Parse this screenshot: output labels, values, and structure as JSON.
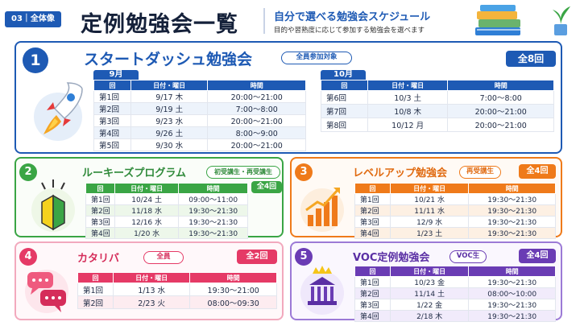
{
  "header": {
    "section_badge": "03｜全体像",
    "title": "定例勉強会一覧",
    "subtitle": "自分で選べる勉強会スケジュール",
    "description": "目的や習熟度に応じて参加する勉強会を選べます"
  },
  "columns": [
    "回",
    "日付・曜日",
    "時間"
  ],
  "colors": {
    "blue": "#1e5ab4",
    "green": "#3aa545",
    "orange": "#ef7a1a",
    "pink": "#e53a66",
    "purple": "#6a3cb4"
  },
  "cards": {
    "dash": {
      "number": "1",
      "title": "スタートダッシュ勉強会",
      "tag": "全員参加対象",
      "total": "全8回",
      "icon": "rocket-icon",
      "months": [
        {
          "label": "9月",
          "rows": [
            [
              "第1回",
              "9/17 木",
              "20:00〜21:00"
            ],
            [
              "第2回",
              "9/19 土",
              "7:00〜8:00"
            ],
            [
              "第3回",
              "9/23 水",
              "20:00〜21:00"
            ],
            [
              "第4回",
              "9/26 土",
              "8:00〜9:00"
            ],
            [
              "第5回",
              "9/30 水",
              "20:00〜21:00"
            ]
          ]
        },
        {
          "label": "10月",
          "rows": [
            [
              "第6回",
              "10/3 土",
              "7:00〜8:00"
            ],
            [
              "第7回",
              "10/8 木",
              "20:00〜21:00"
            ],
            [
              "第8回",
              "10/12 月",
              "20:00〜21:00"
            ]
          ]
        }
      ]
    },
    "rookies": {
      "number": "2",
      "title": "ルーキーズプログラム",
      "tag": "初受講生・再受講生",
      "total": "全4回",
      "icon": "beginner-mark-icon",
      "rows": [
        [
          "第1回",
          "10/24 土",
          "09:00〜11:00"
        ],
        [
          "第2回",
          "11/18 水",
          "19:30〜21:30"
        ],
        [
          "第3回",
          "12/16 水",
          "19:30〜21:30"
        ],
        [
          "第4回",
          "1/20 水",
          "19:30〜21:30"
        ]
      ]
    },
    "levelup": {
      "number": "3",
      "title": "レベルアップ勉強会",
      "tag": "再受講生",
      "total": "全4回",
      "icon": "growth-chart-icon",
      "rows": [
        [
          "第1回",
          "10/21 水",
          "19:30〜21:30"
        ],
        [
          "第2回",
          "11/11 水",
          "19:30〜21:30"
        ],
        [
          "第3回",
          "12/9 水",
          "19:30〜21:30"
        ],
        [
          "第4回",
          "1/23 土",
          "19:30〜21:30"
        ]
      ]
    },
    "kataribar": {
      "number": "4",
      "title": "カタリバ",
      "tag": "全員",
      "total": "全2回",
      "icon": "chat-bubbles-icon",
      "rows": [
        [
          "第1回",
          "1/13 水",
          "19:30〜21:00"
        ],
        [
          "第2回",
          "2/23 火",
          "08:00〜09:30"
        ]
      ]
    },
    "voc": {
      "number": "5",
      "title": "VOC定例勉強会",
      "tag": "VOC生",
      "total": "全4回",
      "icon": "crown-building-icon",
      "rows": [
        [
          "第1回",
          "10/23 金",
          "19:30〜21:30"
        ],
        [
          "第2回",
          "11/14 土",
          "08:00〜10:00"
        ],
        [
          "第3回",
          "1/22 金",
          "19:30〜21:30"
        ],
        [
          "第4回",
          "2/18 木",
          "19:30〜21:30"
        ]
      ]
    }
  }
}
